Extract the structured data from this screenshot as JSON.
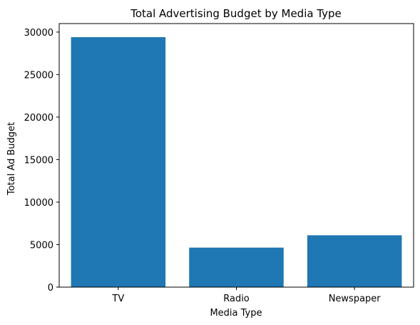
{
  "chart_data": {
    "type": "bar",
    "title": "Total Advertising Budget by Media Type",
    "xlabel": "Media Type",
    "ylabel": "Total Ad Budget",
    "categories": [
      "TV",
      "Radio",
      "Newspaper"
    ],
    "values": [
      29400,
      4650,
      6100
    ],
    "ylim": [
      0,
      31000
    ],
    "yticks": [
      0,
      5000,
      10000,
      15000,
      20000,
      25000,
      30000
    ],
    "grid": false,
    "bar_color": "#1f77b4"
  }
}
